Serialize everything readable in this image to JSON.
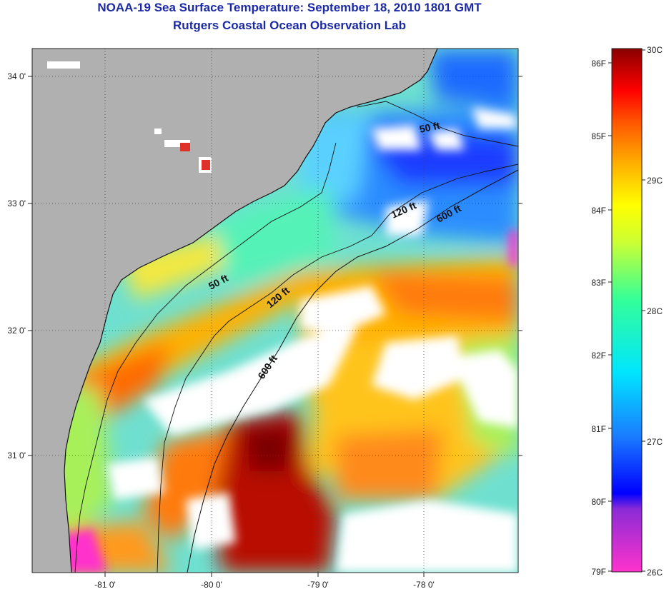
{
  "header": {
    "title_line1": "NOAA-19 Sea Surface Temperature:  September 18, 2010 1801 GMT",
    "title_line2": "Rutgers Coastal Ocean Observation Lab"
  },
  "map": {
    "lat_labels": [
      "34 0'",
      "33 0'",
      "32 0'",
      "31 0'"
    ],
    "lon_labels": [
      "-81 0'",
      "-80 0'",
      "-79 0'",
      "-78 0'"
    ],
    "isobath_labels": [
      "50 ft",
      "50 ft",
      "120 ft",
      "120 ft",
      "600 ft",
      "600 ft"
    ]
  },
  "colorbar": {
    "fahrenheit_labels": [
      "86F",
      "85F",
      "84F",
      "83F",
      "82F",
      "81F",
      "80F",
      "79F"
    ],
    "celsius_labels": [
      "30C",
      "29C",
      "28C",
      "27C",
      "26C"
    ]
  },
  "colors": {
    "land": "#b0b0b0",
    "title": "#1c2aa6",
    "cloud": "#ffffff"
  }
}
